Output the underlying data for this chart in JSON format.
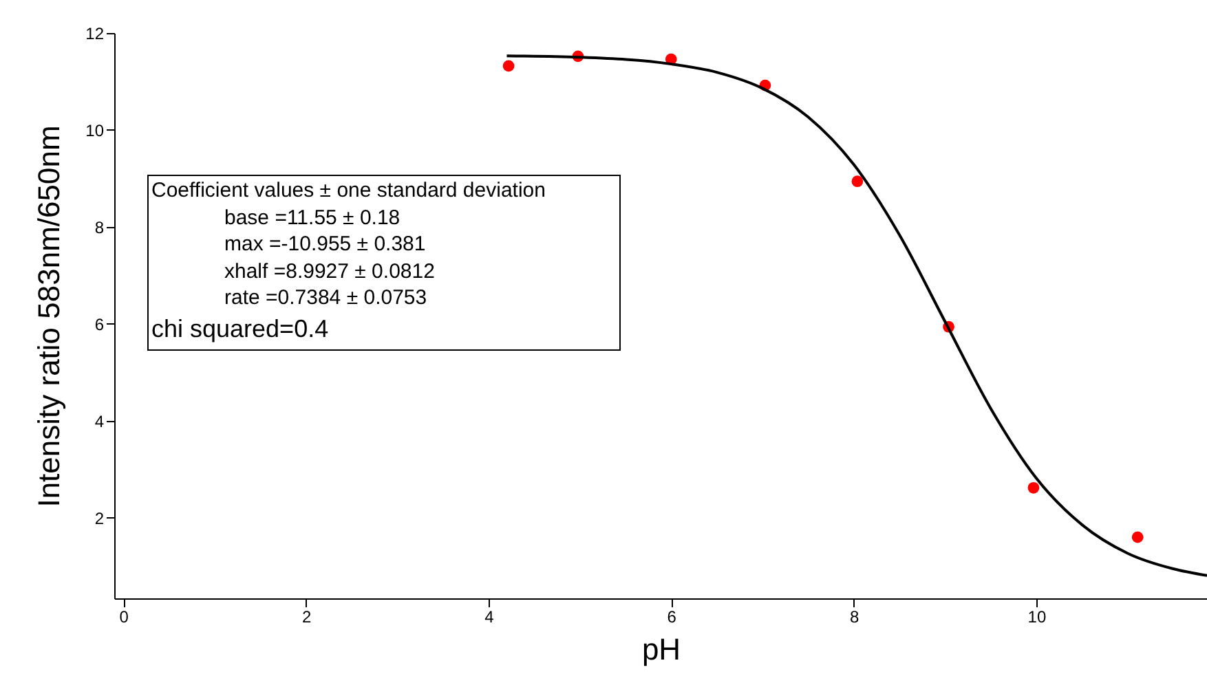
{
  "chart_data": {
    "type": "scatter",
    "xlabel": "pH",
    "ylabel": "Intensity ratio 583nm/650nm",
    "xlim": [
      -0.1,
      11.87
    ],
    "ylim": [
      0.34,
      12
    ],
    "xticks": [
      0,
      2,
      4,
      6,
      8,
      10
    ],
    "yticks": [
      2,
      4,
      6,
      8,
      10,
      12
    ],
    "grid": false,
    "series": [
      {
        "marker": "circle",
        "color": "#ff0000",
        "x": [
          4.22,
          4.98,
          6.0,
          7.03,
          8.04,
          9.04,
          9.97,
          11.11
        ],
        "values": [
          11.32,
          11.52,
          11.46,
          10.92,
          8.94,
          5.94,
          2.62,
          1.6
        ]
      },
      {
        "type": "line",
        "color": "#000000",
        "marker": "none",
        "line_style": "solid",
        "x": [
          4.2,
          5,
          6,
          6.5,
          7,
          7.5,
          8,
          8.5,
          9,
          9.5,
          10,
          10.5,
          11,
          11.5,
          11.87
        ],
        "values": [
          11.53,
          11.5,
          11.36,
          11.19,
          10.86,
          10.27,
          9.29,
          7.84,
          6.05,
          4.26,
          2.82,
          1.86,
          1.27,
          0.95,
          0.81
        ]
      }
    ],
    "annotations": [
      "Coefficient values ± one standard deviation",
      "base =11.55 ± 0.18",
      "max =-10.955 ± 0.381",
      "xhalf =8.9927 ± 0.0812",
      "rate =0.7384 ± 0.0753",
      "chi squared=0.4"
    ]
  }
}
